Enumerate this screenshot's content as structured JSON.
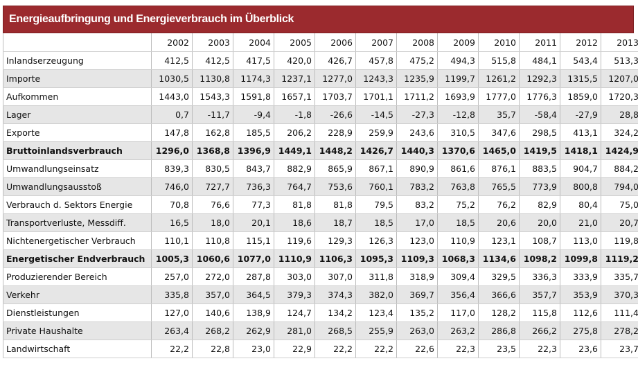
{
  "title": "Energieaufbringung und Energieverbrauch im Überblick",
  "years": [
    "2002",
    "2003",
    "2004",
    "2005",
    "2006",
    "2007",
    "2008",
    "2009",
    "2010",
    "2011",
    "2012",
    "2013"
  ],
  "rows": [
    {
      "label": "Inlandserzeugung",
      "values": [
        "412,5",
        "412,5",
        "417,5",
        "420,0",
        "426,7",
        "457,8",
        "475,2",
        "494,3",
        "515,8",
        "484,1",
        "543,4",
        "513,3"
      ],
      "bold": false
    },
    {
      "label": "Importe",
      "values": [
        "1030,5",
        "1130,8",
        "1174,3",
        "1237,1",
        "1277,0",
        "1243,3",
        "1235,9",
        "1199,7",
        "1261,2",
        "1292,3",
        "1315,5",
        "1207,0"
      ],
      "bold": false
    },
    {
      "label": "Aufkommen",
      "values": [
        "1443,0",
        "1543,3",
        "1591,8",
        "1657,1",
        "1703,7",
        "1701,1",
        "1711,2",
        "1693,9",
        "1777,0",
        "1776,3",
        "1859,0",
        "1720,3"
      ],
      "bold": false
    },
    {
      "label": "Lager",
      "values": [
        "0,7",
        "-11,7",
        "-9,4",
        "-1,8",
        "-26,6",
        "-14,5",
        "-27,3",
        "-12,8",
        "35,7",
        "-58,4",
        "-27,9",
        "28,8"
      ],
      "bold": false
    },
    {
      "label": "Exporte",
      "values": [
        "147,8",
        "162,8",
        "185,5",
        "206,2",
        "228,9",
        "259,9",
        "243,6",
        "310,5",
        "347,6",
        "298,5",
        "413,1",
        "324,2"
      ],
      "bold": false
    },
    {
      "label": "Bruttoinlandsverbrauch",
      "values": [
        "1296,0",
        "1368,8",
        "1396,9",
        "1449,1",
        "1448,2",
        "1426,7",
        "1440,3",
        "1370,6",
        "1465,0",
        "1419,5",
        "1418,1",
        "1424,9"
      ],
      "bold": true
    },
    {
      "label": "Umwandlungseinsatz",
      "values": [
        "839,3",
        "830,5",
        "843,7",
        "882,9",
        "865,9",
        "867,1",
        "890,9",
        "861,6",
        "876,1",
        "883,5",
        "904,7",
        "884,2"
      ],
      "bold": false
    },
    {
      "label": "Umwandlungsausstoß",
      "values": [
        "746,0",
        "727,7",
        "736,3",
        "764,7",
        "753,6",
        "760,1",
        "783,2",
        "763,8",
        "765,5",
        "773,9",
        "800,8",
        "794,0"
      ],
      "bold": false
    },
    {
      "label": "Verbrauch d. Sektors Energie",
      "values": [
        "70,8",
        "76,6",
        "77,3",
        "81,8",
        "81,8",
        "79,5",
        "83,2",
        "75,2",
        "76,2",
        "82,9",
        "80,4",
        "75,0"
      ],
      "bold": false
    },
    {
      "label": "Transportverluste, Messdiff.",
      "values": [
        "16,5",
        "18,0",
        "20,1",
        "18,6",
        "18,7",
        "18,5",
        "17,0",
        "18,5",
        "20,6",
        "20,0",
        "21,0",
        "20,7"
      ],
      "bold": false
    },
    {
      "label": "Nichtenergetischer Verbrauch",
      "values": [
        "110,1",
        "110,8",
        "115,1",
        "119,6",
        "129,3",
        "126,3",
        "123,0",
        "110,9",
        "123,1",
        "108,7",
        "113,0",
        "119,8"
      ],
      "bold": false
    },
    {
      "label": "Energetischer Endverbrauch",
      "values": [
        "1005,3",
        "1060,6",
        "1077,0",
        "1110,9",
        "1106,3",
        "1095,3",
        "1109,3",
        "1068,3",
        "1134,6",
        "1098,2",
        "1099,8",
        "1119,2"
      ],
      "bold": true
    },
    {
      "label": "Produzierender Bereich",
      "values": [
        "257,0",
        "272,0",
        "287,8",
        "303,0",
        "307,0",
        "311,8",
        "318,9",
        "309,4",
        "329,5",
        "336,3",
        "333,9",
        "335,7"
      ],
      "bold": false
    },
    {
      "label": "Verkehr",
      "values": [
        "335,8",
        "357,0",
        "364,5",
        "379,3",
        "374,3",
        "382,0",
        "369,7",
        "356,4",
        "366,6",
        "357,7",
        "353,9",
        "370,3"
      ],
      "bold": false
    },
    {
      "label": "Dienstleistungen",
      "values": [
        "127,0",
        "140,6",
        "138,9",
        "124,7",
        "134,2",
        "123,4",
        "135,2",
        "117,0",
        "128,2",
        "115,8",
        "112,6",
        "111,4"
      ],
      "bold": false
    },
    {
      "label": "Private Haushalte",
      "values": [
        "263,4",
        "268,2",
        "262,9",
        "281,0",
        "268,5",
        "255,9",
        "263,0",
        "263,2",
        "286,8",
        "266,2",
        "275,8",
        "278,2"
      ],
      "bold": false
    },
    {
      "label": "Landwirtschaft",
      "values": [
        "22,2",
        "22,8",
        "23,0",
        "22,9",
        "22,2",
        "22,2",
        "22,6",
        "22,3",
        "23,5",
        "22,3",
        "23,6",
        "23,7"
      ],
      "bold": false
    }
  ],
  "colors": {
    "title_background": "#9b2a2e",
    "title_text": "#ffffff",
    "row_shade": "#e6e6e6"
  }
}
